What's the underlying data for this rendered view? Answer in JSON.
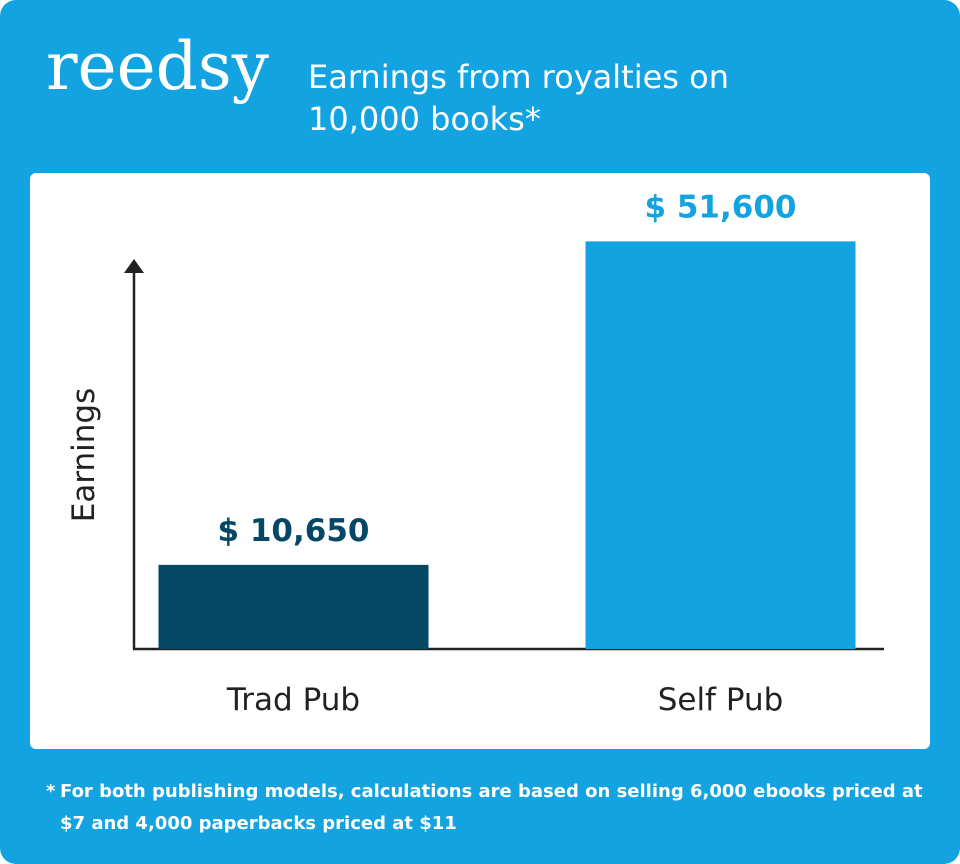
{
  "header": {
    "logo_text": "reedsy",
    "title_line1": "Earnings from royalties on",
    "title_line2": "10,000 books*"
  },
  "footnote": {
    "marker": "*",
    "text": "For both publishing models, calculations are based on selling 6,000 ebooks priced at $7 and 4,000 paperbacks priced at $11"
  },
  "chart_data": {
    "type": "bar",
    "title": "Earnings from royalties on 10,000 books*",
    "xlabel": "",
    "ylabel": "Earnings",
    "categories": [
      "Trad Pub",
      "Self Pub"
    ],
    "values": [
      10650,
      51600
    ],
    "value_labels": [
      "$ 10,650",
      "$ 51,600"
    ],
    "bar_colors": [
      "#044866",
      "#12a3e0"
    ],
    "label_colors": [
      "#044866",
      "#12a3e0"
    ],
    "ylim": [
      0,
      60000
    ],
    "grid": false
  },
  "colors": {
    "background": "#12a3e0",
    "card": "#ffffff",
    "axis": "#222222"
  }
}
